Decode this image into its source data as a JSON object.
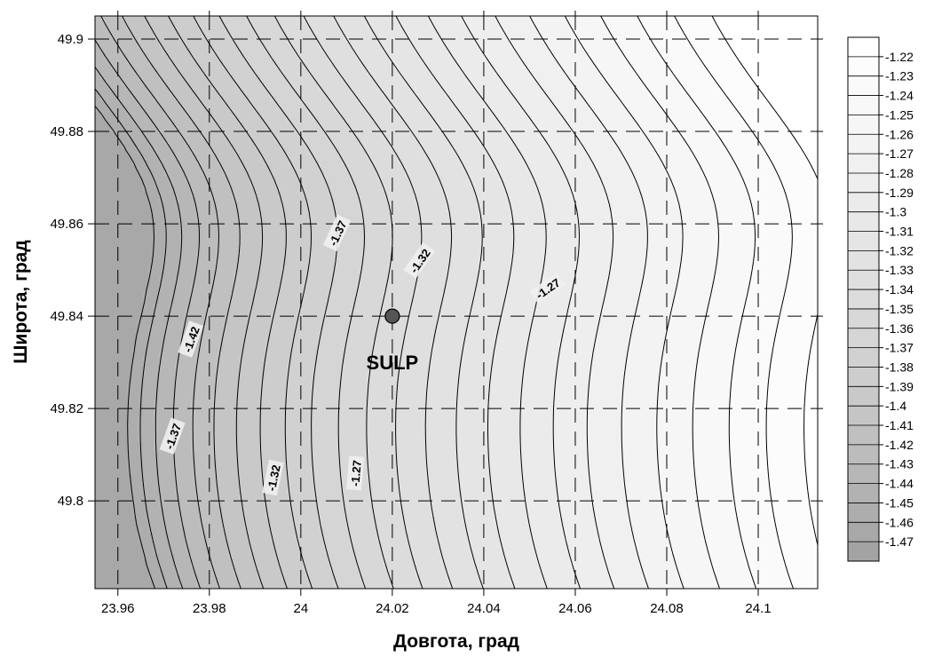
{
  "chart_data": {
    "type": "contour",
    "title": "",
    "xlabel": "Довгота, град",
    "ylabel": "Широта, град",
    "xlim": [
      23.955,
      24.113
    ],
    "ylim": [
      49.781,
      49.905
    ],
    "x_ticks": [
      {
        "value": 23.96,
        "label": "23.96"
      },
      {
        "value": 23.98,
        "label": "23.98"
      },
      {
        "value": 24.0,
        "label": "24"
      },
      {
        "value": 24.02,
        "label": "24.02"
      },
      {
        "value": 24.04,
        "label": "24.04"
      },
      {
        "value": 24.06,
        "label": "24.06"
      },
      {
        "value": 24.08,
        "label": "24.08"
      },
      {
        "value": 24.1,
        "label": "24.1"
      }
    ],
    "y_ticks": [
      {
        "value": 49.8,
        "label": "49.8"
      },
      {
        "value": 49.82,
        "label": "49.82"
      },
      {
        "value": 49.84,
        "label": "49.84"
      },
      {
        "value": 49.86,
        "label": "49.86"
      },
      {
        "value": 49.88,
        "label": "49.88"
      },
      {
        "value": 49.9,
        "label": "49.9"
      }
    ],
    "grid": true,
    "grid_style": "dashed",
    "legend_position": "right",
    "colorbar": {
      "labels": [
        "-1.22",
        "-1.23",
        "-1.24",
        "-1.25",
        "-1.26",
        "-1.27",
        "-1.28",
        "-1.29",
        "-1.3",
        "-1.31",
        "-1.32",
        "-1.33",
        "-1.34",
        "-1.35",
        "-1.36",
        "-1.37",
        "-1.38",
        "-1.39",
        "-1.4",
        "-1.41",
        "-1.42",
        "-1.43",
        "-1.44",
        "-1.45",
        "-1.46",
        "-1.47"
      ],
      "colors": [
        "#ffffff",
        "#fcfcfc",
        "#fafafa",
        "#f8f8f8",
        "#f6f6f6",
        "#f3f3f3",
        "#f0f0f0",
        "#eeeeee",
        "#ebebeb",
        "#e8e8e8",
        "#e5e5e5",
        "#e2e2e2",
        "#dfdfdf",
        "#dcdcdc",
        "#d8d8d8",
        "#d5d5d5",
        "#d1d1d1",
        "#cdcdcd",
        "#c9c9c9",
        "#c5c5c5",
        "#c0c0c0",
        "#bcbcbc",
        "#b7b7b7",
        "#b2b2b2",
        "#adadad",
        "#a8a8a8",
        "#a3a3a3"
      ]
    },
    "contour_levels": [
      -1.47,
      -1.46,
      -1.45,
      -1.44,
      -1.43,
      -1.42,
      -1.41,
      -1.4,
      -1.39,
      -1.38,
      -1.37,
      -1.36,
      -1.35,
      -1.34,
      -1.33,
      -1.32,
      -1.31,
      -1.3,
      -1.29,
      -1.28,
      -1.27,
      -1.26,
      -1.25,
      -1.24,
      -1.23,
      -1.22
    ],
    "contour_labels": [
      {
        "text": "-1.37",
        "x": 24.008,
        "y": 49.858,
        "angle": -65
      },
      {
        "text": "-1.32",
        "x": 24.026,
        "y": 49.852,
        "angle": -55
      },
      {
        "text": "-1.27",
        "x": 24.054,
        "y": 49.846,
        "angle": -35
      },
      {
        "text": "-1.42",
        "x": 23.976,
        "y": 49.835,
        "angle": -70
      },
      {
        "text": "-1.37",
        "x": 23.972,
        "y": 49.814,
        "angle": -70
      },
      {
        "text": "-1.32",
        "x": 23.994,
        "y": 49.805,
        "angle": -78
      },
      {
        "text": "-1.27",
        "x": 24.012,
        "y": 49.806,
        "angle": -85
      }
    ],
    "stations": [
      {
        "name": "SULP",
        "x": 24.02,
        "y": 49.84
      }
    ]
  }
}
